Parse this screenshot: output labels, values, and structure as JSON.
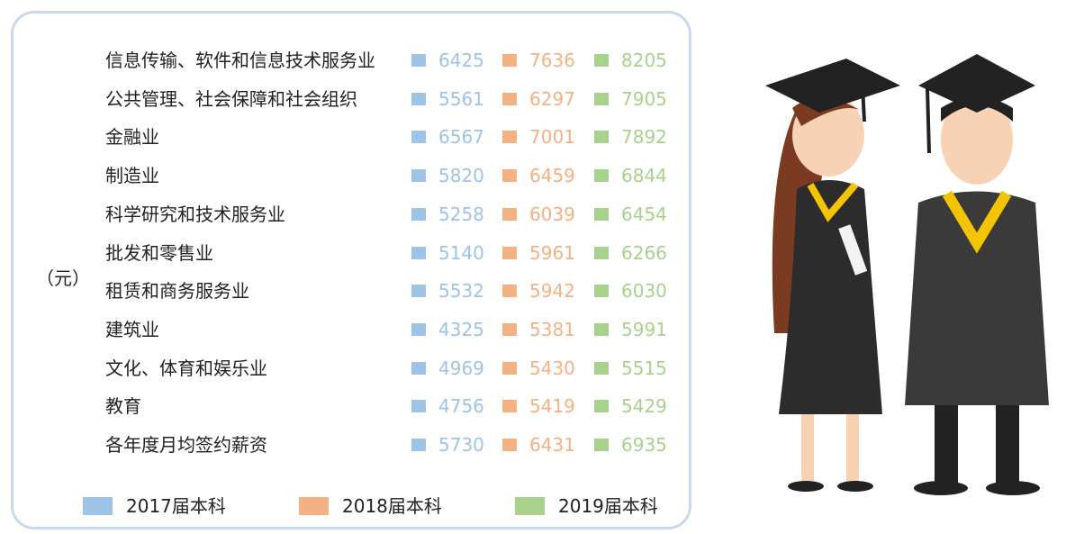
{
  "table": {
    "unit": "（元）",
    "series": [
      {
        "name": "2017届本科",
        "color": "#9dc3e6"
      },
      {
        "name": "2018届本科",
        "color": "#f4b183"
      },
      {
        "name": "2019届本科",
        "color": "#a9d18e"
      }
    ],
    "rows": [
      {
        "label": "信息传输、软件和信息技术服务业",
        "values": [
          6425,
          7636,
          8205
        ]
      },
      {
        "label": "公共管理、社会保障和社会组织",
        "values": [
          5561,
          6297,
          7905
        ]
      },
      {
        "label": "金融业",
        "values": [
          6567,
          7001,
          7892
        ]
      },
      {
        "label": "制造业",
        "values": [
          5820,
          6459,
          6844
        ]
      },
      {
        "label": "科学研究和技术服务业",
        "values": [
          5258,
          6039,
          6454
        ]
      },
      {
        "label": "批发和零售业",
        "values": [
          5140,
          5961,
          6266
        ]
      },
      {
        "label": "租赁和商务服务业",
        "values": [
          5532,
          5942,
          6030
        ]
      },
      {
        "label": "建筑业",
        "values": [
          4325,
          5381,
          5991
        ]
      },
      {
        "label": "文化、体育和娱乐业",
        "values": [
          4969,
          5430,
          5515
        ]
      },
      {
        "label": "教育",
        "values": [
          4756,
          5419,
          5429
        ]
      },
      {
        "label": "各年度月均签约薪资",
        "values": [
          5730,
          6431,
          6935
        ]
      }
    ]
  }
}
